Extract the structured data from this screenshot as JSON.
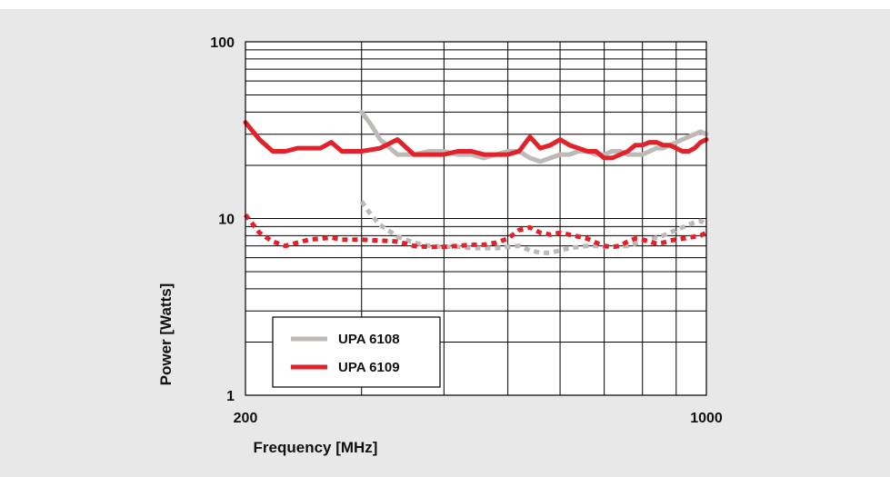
{
  "chart_data": {
    "type": "line",
    "xlabel": "Frequency [MHz]",
    "ylabel": "Power [Watts]",
    "x_scale": "log",
    "y_scale": "log",
    "xlim": [
      200,
      1000
    ],
    "ylim": [
      1,
      100
    ],
    "x_ticks": [
      200,
      1000
    ],
    "x_tick_labels": [
      "200",
      "1000"
    ],
    "y_ticks": [
      1,
      10,
      100
    ],
    "y_tick_labels": [
      "1",
      "10",
      "100"
    ],
    "grid": true,
    "legend_placement": "lower-left",
    "series": [
      {
        "name": "UPA 6108",
        "color": "#bdb9b6",
        "style": "solid",
        "x": [
          300,
          310,
          320,
          340,
          360,
          380,
          400,
          420,
          440,
          460,
          480,
          500,
          520,
          540,
          560,
          580,
          600,
          620,
          640,
          660,
          680,
          700,
          720,
          740,
          760,
          780,
          800,
          820,
          840,
          860,
          880,
          900,
          920,
          940,
          960,
          980,
          1000
        ],
        "values": [
          40,
          34,
          28,
          23,
          23,
          24,
          24,
          23,
          23,
          22,
          23,
          24,
          24,
          22,
          21,
          22,
          23,
          23,
          24,
          24,
          23,
          23,
          24,
          24,
          23,
          23,
          23,
          24,
          25,
          25,
          26,
          27,
          28,
          29,
          30,
          31,
          30
        ]
      },
      {
        "name": "UPA 6109",
        "color": "#e3212b",
        "style": "solid",
        "x": [
          200,
          210,
          220,
          230,
          240,
          250,
          260,
          270,
          280,
          290,
          300,
          320,
          340,
          360,
          380,
          400,
          420,
          440,
          460,
          480,
          500,
          520,
          540,
          560,
          580,
          600,
          620,
          640,
          660,
          680,
          700,
          720,
          740,
          760,
          780,
          800,
          820,
          840,
          860,
          880,
          900,
          920,
          940,
          960,
          980,
          1000
        ],
        "values": [
          35,
          28,
          24,
          24,
          25,
          25,
          25,
          27,
          24,
          24,
          24,
          25,
          28,
          23,
          23,
          23,
          24,
          24,
          23,
          23,
          23,
          24,
          29,
          25,
          26,
          28,
          26,
          25,
          24,
          24,
          22,
          22,
          23,
          24,
          26,
          26,
          27,
          27,
          26,
          26,
          25,
          24,
          24,
          25,
          27,
          28
        ]
      },
      {
        "name": "UPA 6108",
        "color": "#bdb9b6",
        "style": "dotted",
        "x": [
          300,
          310,
          320,
          340,
          360,
          380,
          400,
          420,
          440,
          460,
          480,
          500,
          520,
          540,
          560,
          580,
          600,
          620,
          640,
          660,
          680,
          700,
          720,
          740,
          760,
          780,
          800,
          820,
          840,
          860,
          880,
          900,
          920,
          940,
          960,
          980,
          1000
        ],
        "values": [
          12.5,
          10.5,
          9.2,
          7.9,
          7.3,
          7.0,
          6.9,
          6.9,
          6.8,
          6.8,
          6.8,
          6.9,
          7.0,
          6.6,
          6.4,
          6.4,
          6.6,
          6.8,
          6.9,
          7.0,
          7.0,
          6.9,
          6.9,
          7.0,
          7.0,
          7.2,
          7.4,
          7.6,
          7.8,
          8.0,
          8.3,
          8.6,
          8.9,
          9.2,
          9.5,
          9.7,
          9.3
        ]
      },
      {
        "name": "UPA 6109",
        "color": "#e3212b",
        "style": "dotted",
        "x": [
          200,
          210,
          220,
          230,
          240,
          250,
          260,
          270,
          280,
          290,
          300,
          320,
          340,
          360,
          380,
          400,
          420,
          440,
          460,
          480,
          500,
          520,
          540,
          560,
          580,
          600,
          620,
          640,
          660,
          680,
          700,
          720,
          740,
          760,
          780,
          800,
          820,
          840,
          860,
          880,
          900,
          920,
          940,
          960,
          980,
          1000
        ],
        "values": [
          10.5,
          8.3,
          7.4,
          7.0,
          7.3,
          7.6,
          7.7,
          7.8,
          7.6,
          7.6,
          7.6,
          7.5,
          7.4,
          7.0,
          6.9,
          6.9,
          7.0,
          7.1,
          7.1,
          7.3,
          7.7,
          8.6,
          8.9,
          8.3,
          8.1,
          8.3,
          8.1,
          7.9,
          7.7,
          7.3,
          7.0,
          6.9,
          7.0,
          7.4,
          7.7,
          7.6,
          7.4,
          7.2,
          7.3,
          7.5,
          7.6,
          7.7,
          7.8,
          7.9,
          8.0,
          8.3
        ]
      }
    ]
  }
}
